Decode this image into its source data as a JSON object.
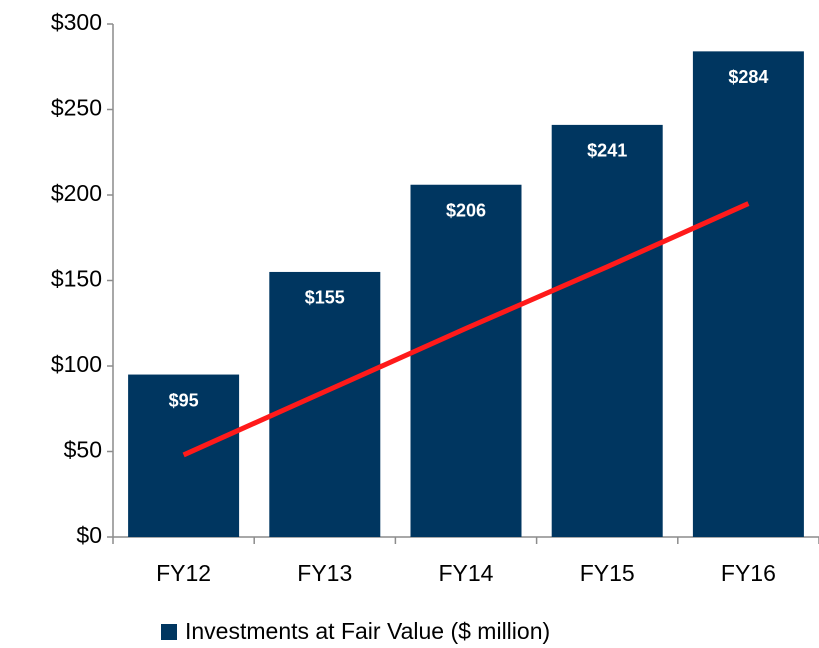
{
  "chart_data": {
    "type": "bar",
    "categories": [
      "FY12",
      "FY13",
      "FY14",
      "FY15",
      "FY16"
    ],
    "series": [
      {
        "name": "Investments at Fair Value ($ million)",
        "color": "#003660",
        "values": [
          95,
          155,
          206,
          241,
          284
        ],
        "value_labels": [
          "$95",
          "$155",
          "$206",
          "$241",
          "$284"
        ]
      }
    ],
    "trendline": {
      "color": "#ff1a1a",
      "values": [
        48,
        85,
        122,
        158,
        195
      ]
    },
    "ylim": [
      0,
      300
    ],
    "yticks": [
      {
        "value": 0,
        "label": "$0"
      },
      {
        "value": 50,
        "label": "$50"
      },
      {
        "value": 100,
        "label": "$100"
      },
      {
        "value": 150,
        "label": "$150"
      },
      {
        "value": 200,
        "label": "$200"
      },
      {
        "value": 250,
        "label": "$250"
      },
      {
        "value": 300,
        "label": "$300"
      }
    ],
    "grid": false,
    "legend": "bottom"
  }
}
